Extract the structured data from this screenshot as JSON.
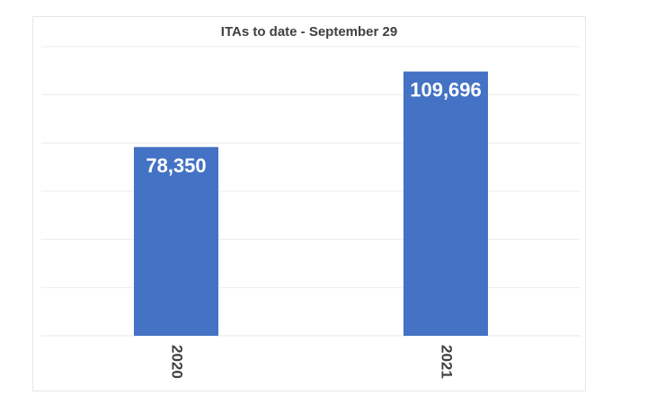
{
  "chart_data": {
    "type": "bar",
    "title": "ITAs to date - September 29",
    "categories": [
      "2020",
      "2021"
    ],
    "values": [
      78350,
      109696
    ],
    "data_labels": [
      "78,350",
      "109,696"
    ],
    "xlabel": "",
    "ylabel": "",
    "ylim": [
      0,
      120000
    ],
    "grid": true,
    "legend": "none",
    "bar_color": "#4472C4",
    "grid_color": "#ececec",
    "label_color": "#ffffff"
  }
}
